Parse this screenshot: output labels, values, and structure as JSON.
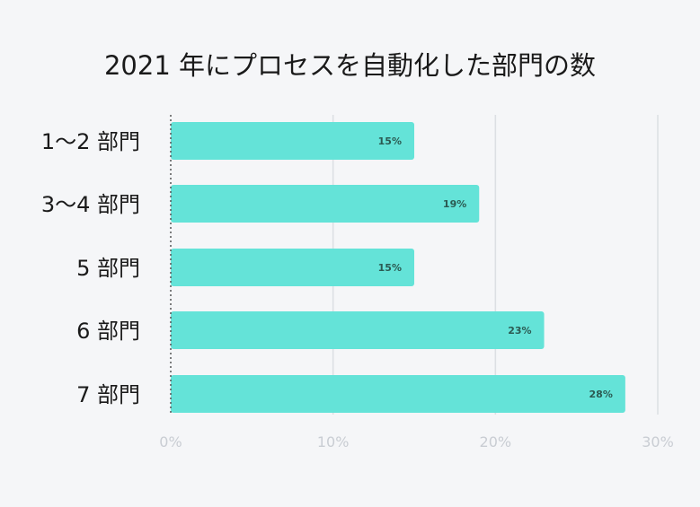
{
  "chart_data": {
    "type": "bar",
    "orientation": "horizontal",
    "title": "2021 年にプロセスを自動化した部門の数",
    "categories": [
      "1～2 部門",
      "3～4 部門",
      "5 部門",
      "6 部門",
      "7 部門"
    ],
    "values": [
      15,
      19,
      15,
      23,
      28
    ],
    "data_labels": [
      "15%",
      "19%",
      "15%",
      "23%",
      "28%"
    ],
    "xlim": [
      0,
      30
    ],
    "x_ticks": [
      0,
      10,
      20,
      30
    ],
    "x_tick_labels": [
      "0%",
      "10%",
      "20%",
      "30%"
    ],
    "grid": "vertical",
    "bar_color": "#64e3d8",
    "grid_color": "#dcdfe3"
  }
}
